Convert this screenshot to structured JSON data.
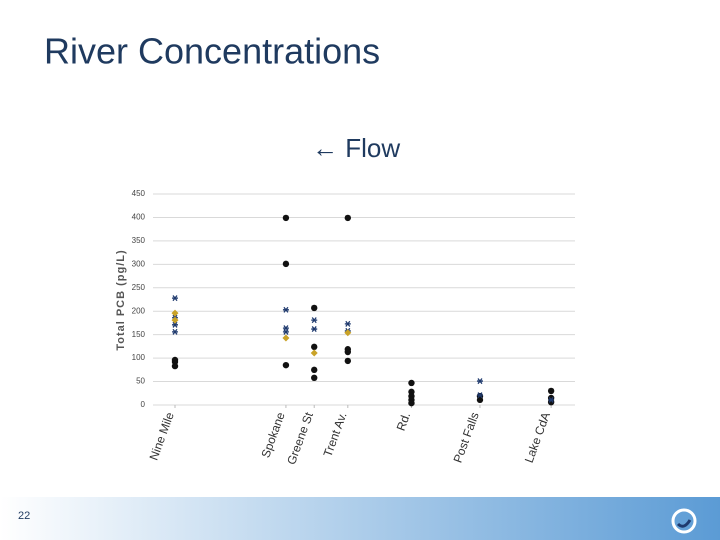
{
  "chart_data": {
    "type": "scatter",
    "title": "River Concentrations",
    "annotation": "← Flow",
    "ylabel": "Total PCB (pg/L)",
    "page_number": "22",
    "xlim": [
      0,
      100
    ],
    "xticks": [
      {
        "value": 9.5,
        "label": "Nine Mile"
      },
      {
        "value": 34.6,
        "label": "Spokane"
      },
      {
        "value": 41,
        "label": "Greene St"
      },
      {
        "value": 48.6,
        "label": "Trent Av."
      },
      {
        "value": 63,
        "label": "Rd."
      },
      {
        "value": 78.5,
        "label": "Post Falls"
      },
      {
        "value": 94.6,
        "label": "Lake CdA"
      }
    ],
    "ylim": [
      0,
      450
    ],
    "yticks": [
      0,
      50,
      100,
      150,
      200,
      250,
      300,
      350,
      400,
      450
    ],
    "grid": true,
    "series": [
      {
        "color": "#111111",
        "marker": "circle",
        "x": [
          9.5,
          9.5,
          9.5,
          34.6,
          34.6,
          34.6,
          41,
          41,
          41,
          41,
          48.6,
          48.6,
          48.6,
          48.6,
          63,
          63,
          63,
          63,
          63,
          78.5,
          78.5,
          94.6,
          94.6,
          94.6
        ],
        "values": [
          92,
          83,
          96,
          399,
          301,
          85,
          207,
          124,
          75,
          58,
          399,
          119,
          113,
          94,
          47,
          28,
          19,
          11,
          4,
          11,
          19,
          30,
          15,
          6
        ]
      },
      {
        "color": "#1f3a6e",
        "marker": "star",
        "x": [
          9.5,
          9.5,
          9.5,
          9.5,
          34.6,
          34.6,
          34.6,
          41,
          41,
          48.6,
          48.6,
          78.5,
          78.5,
          94.6
        ],
        "values": [
          228,
          156,
          171,
          186,
          203,
          164,
          156,
          181,
          162,
          173,
          158,
          51,
          21,
          11
        ]
      },
      {
        "color": "#c9a227",
        "marker": "diamond",
        "x": [
          9.5,
          9.5,
          34.6,
          41,
          48.6
        ],
        "values": [
          196,
          181,
          143,
          111,
          154
        ]
      }
    ]
  }
}
